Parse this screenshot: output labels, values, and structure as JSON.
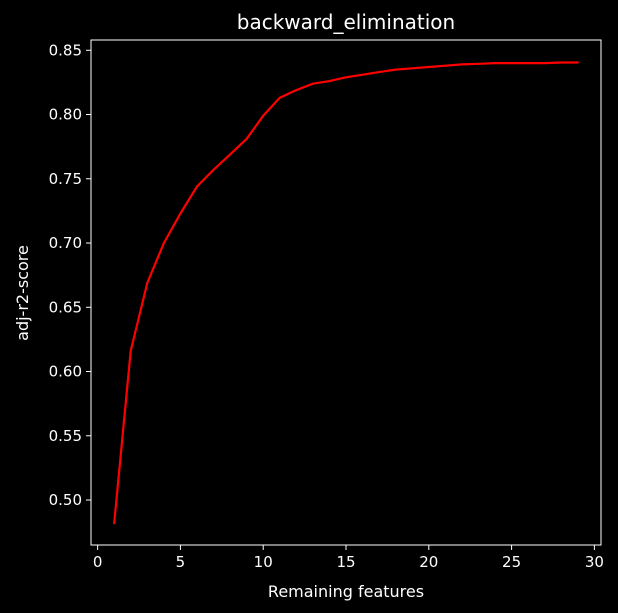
{
  "chart_data": {
    "type": "line",
    "title": "backward_elimination",
    "xlabel": "Remaining features",
    "ylabel": "adj-r2-score",
    "xlim": [
      -0.4,
      30.4
    ],
    "ylim": [
      0.465,
      0.858
    ],
    "x_ticks": [
      0,
      5,
      10,
      15,
      20,
      25,
      30
    ],
    "x_tick_labels": [
      "0",
      "5",
      "10",
      "15",
      "20",
      "25",
      "30"
    ],
    "y_ticks": [
      0.5,
      0.55,
      0.6,
      0.65,
      0.7,
      0.75,
      0.8,
      0.85
    ],
    "y_tick_labels": [
      "0.50",
      "0.55",
      "0.60",
      "0.65",
      "0.70",
      "0.75",
      "0.80",
      "0.85"
    ],
    "grid": false,
    "background": "#000000",
    "foreground": "#ffffff",
    "series": [
      {
        "color": "#ff0000",
        "x": [
          1,
          2,
          3,
          4,
          5,
          6,
          7,
          8,
          9,
          10,
          11,
          12,
          13,
          14,
          15,
          16,
          17,
          18,
          19,
          20,
          21,
          22,
          23,
          24,
          25,
          26,
          27,
          28,
          29
        ],
        "values": [
          0.482,
          0.616,
          0.669,
          0.7,
          0.723,
          0.744,
          0.757,
          0.769,
          0.781,
          0.799,
          0.813,
          0.819,
          0.824,
          0.826,
          0.829,
          0.831,
          0.833,
          0.835,
          0.836,
          0.837,
          0.838,
          0.839,
          0.8395,
          0.84,
          0.84,
          0.84,
          0.84,
          0.8405,
          0.8405
        ]
      }
    ]
  }
}
